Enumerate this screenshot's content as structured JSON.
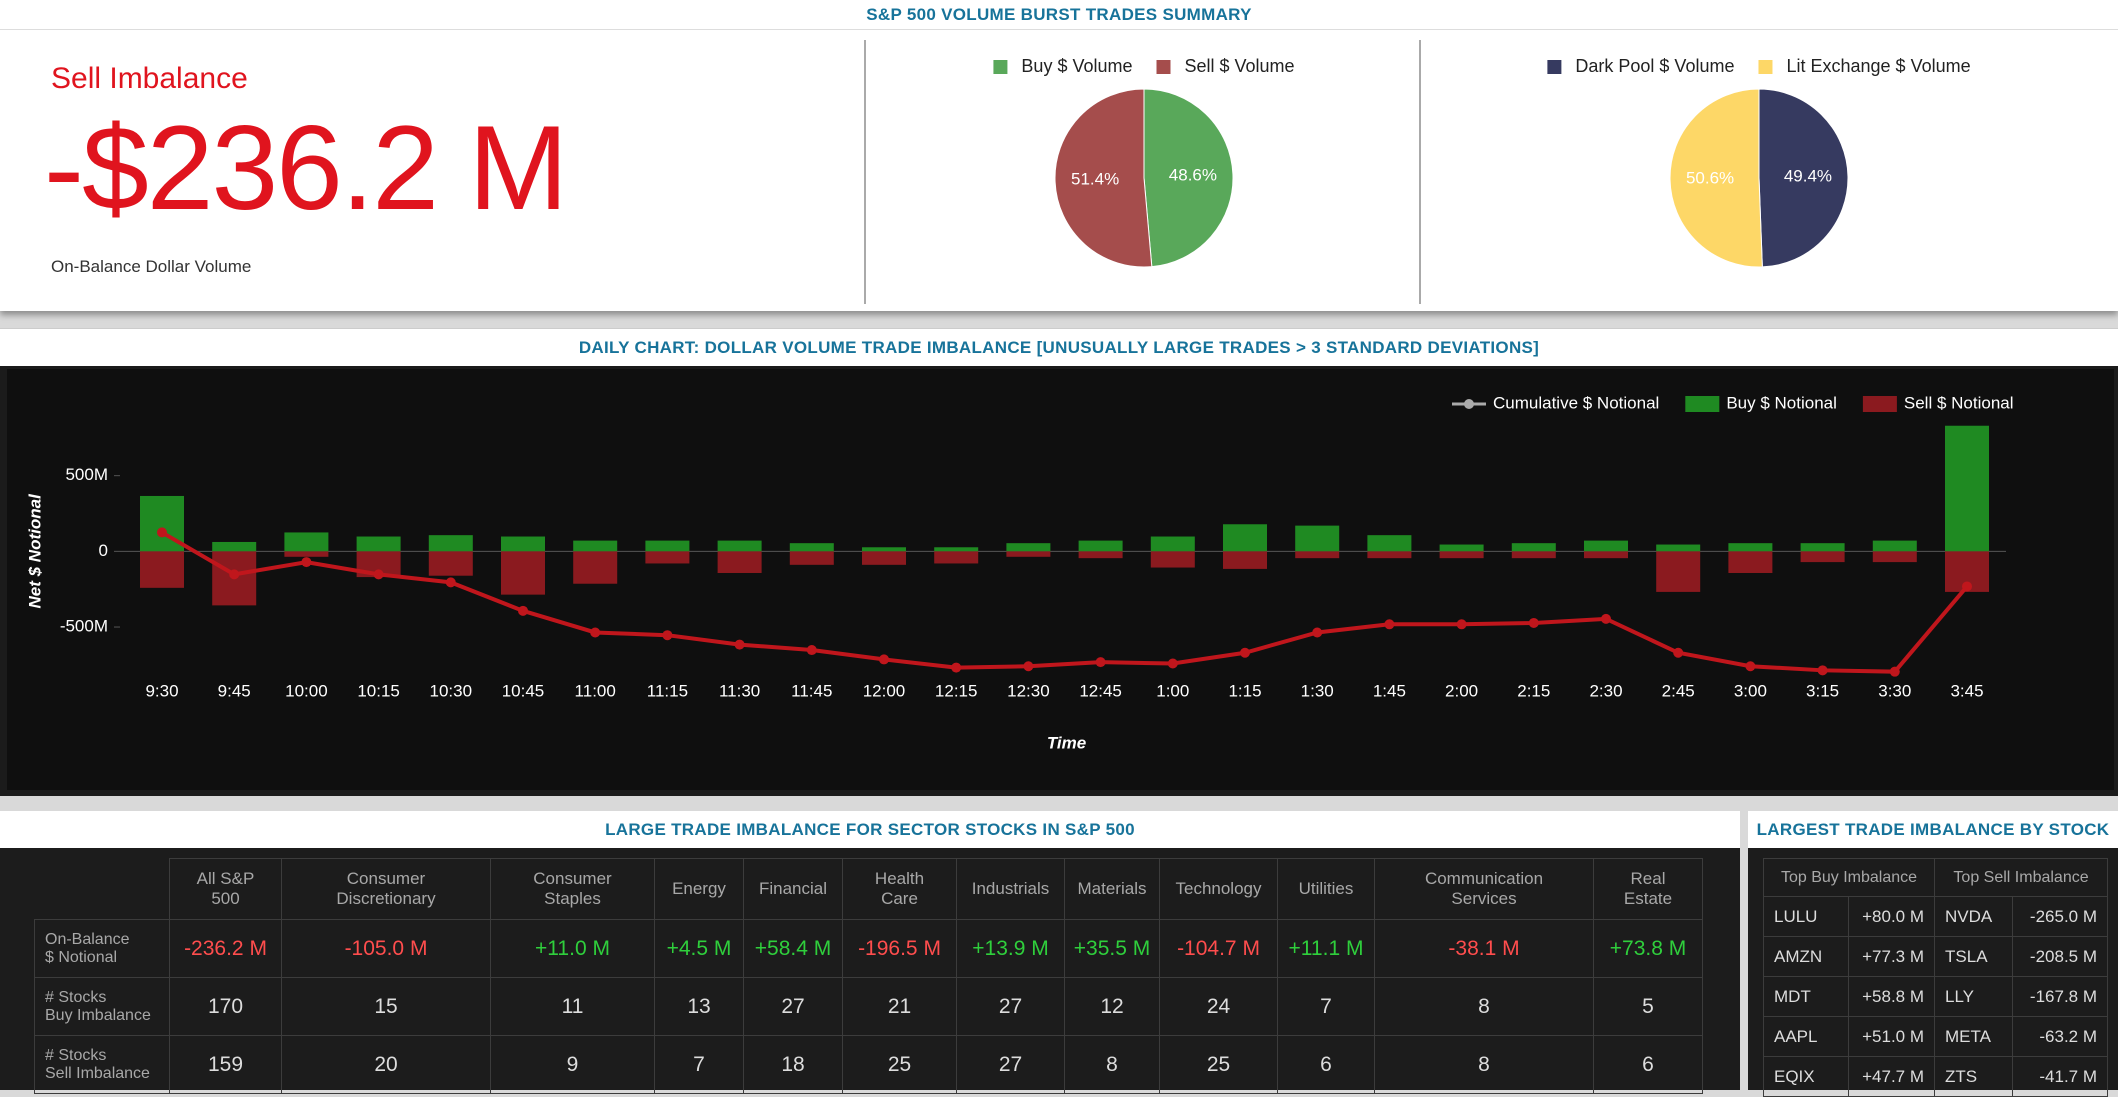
{
  "header": {
    "title": "S&P 500 VOLUME BURST TRADES SUMMARY"
  },
  "summary": {
    "label": "Sell Imbalance",
    "value": "-$236.2 M",
    "caption": "On-Balance Dollar Volume"
  },
  "chart_data": [
    {
      "type": "pie",
      "categories": [
        "Buy $ Volume",
        "Sell $ Volume"
      ],
      "values": [
        48.6,
        51.4
      ],
      "value_labels": [
        "48.6%",
        "51.4%"
      ],
      "colors": [
        "#59a85a",
        "#a54d4c"
      ]
    },
    {
      "type": "pie",
      "categories": [
        "Dark Pool $ Volume",
        "Lit Exchange $ Volume"
      ],
      "values": [
        49.4,
        50.6
      ],
      "value_labels": [
        "49.4%",
        "50.6%"
      ],
      "colors": [
        "#363a60",
        "#fdd767"
      ]
    },
    {
      "type": "bar",
      "title": "DAILY CHART: DOLLAR VOLUME TRADE IMBALANCE [UNUSUALLY LARGE TRADES > 3 STANDARD DEVIATIONS]",
      "x_label": "Time",
      "y_label": "Net $ Notional",
      "categories": [
        "9:30",
        "9:45",
        "10:00",
        "10:15",
        "10:30",
        "10:45",
        "11:00",
        "11:15",
        "11:30",
        "11:45",
        "12:00",
        "12:15",
        "12:30",
        "12:45",
        "1:00",
        "1:15",
        "1:30",
        "1:45",
        "2:00",
        "2:15",
        "2:30",
        "2:45",
        "3:00",
        "3:15",
        "3:30",
        "3:45"
      ],
      "series": [
        {
          "name": "Cumulative $ Notional",
          "type": "line",
          "color": "#c0161c",
          "values": [
            125,
            -152,
            -71,
            -152,
            -205,
            -393,
            -536,
            -554,
            -616,
            -652,
            -714,
            -768,
            -759,
            -732,
            -741,
            -670,
            -536,
            -482,
            -482,
            -473,
            -446,
            -670,
            -759,
            -786,
            -795,
            -232
          ]
        },
        {
          "name": "Buy $ Notional",
          "type": "bar",
          "color": "#1f8a22",
          "values": [
            366,
            62,
            125,
            98,
            107,
            98,
            71,
            71,
            71,
            54,
            27,
            27,
            54,
            71,
            98,
            179,
            170,
            107,
            45,
            54,
            71,
            45,
            54,
            54,
            71,
            830
          ]
        },
        {
          "name": "Sell $ Notional",
          "type": "bar",
          "color": "#8b1a1f",
          "values": [
            -241,
            -357,
            -36,
            -170,
            -161,
            -286,
            -214,
            -80,
            -143,
            -89,
            -89,
            -80,
            -36,
            -45,
            -107,
            -116,
            -45,
            -45,
            -45,
            -45,
            -45,
            -268,
            -143,
            -71,
            -71,
            -268
          ]
        }
      ],
      "ylim": [
        -850,
        1000
      ],
      "yticks": [
        {
          "value": -500,
          "label": "-500M"
        },
        0,
        {
          "value": 500,
          "label": "500M"
        }
      ],
      "grid": false,
      "legend": "top-right"
    }
  ],
  "sector_table": {
    "title": "LARGE TRADE IMBALANCE FOR SECTOR STOCKS IN S&P 500",
    "columns": [
      "All S&P\n500",
      "Consumer\nDiscretionary",
      "Consumer\nStaples",
      "Energy",
      "Financial",
      "Health\nCare",
      "Industrials",
      "Materials",
      "Technology",
      "Utilities",
      "Communication\nServices",
      "Real\nEstate"
    ],
    "rows": [
      {
        "label": "On-Balance\n$ Notional",
        "cells": [
          "-236.2 M",
          "-105.0 M",
          "+11.0 M",
          "+4.5 M",
          "+58.4 M",
          "-196.5 M",
          "+13.9 M",
          "+35.5 M",
          "-104.7 M",
          "+11.1 M",
          "-38.1 M",
          "+73.8 M"
        ]
      },
      {
        "label": "# Stocks\nBuy Imbalance",
        "cells": [
          170,
          15,
          11,
          13,
          27,
          21,
          27,
          12,
          24,
          7,
          8,
          5
        ]
      },
      {
        "label": "# Stocks\nSell Imbalance",
        "cells": [
          159,
          20,
          9,
          7,
          18,
          25,
          27,
          8,
          25,
          6,
          8,
          6
        ]
      }
    ]
  },
  "stock_table": {
    "title": "LARGEST TRADE IMBALANCE BY STOCK",
    "columns": [
      "Top Buy Imbalance",
      "Top Sell Imbalance"
    ],
    "rows": [
      [
        "LULU",
        "+80.0 M",
        "NVDA",
        "-265.0 M"
      ],
      [
        "AMZN",
        "+77.3 M",
        "TSLA",
        "-208.5 M"
      ],
      [
        "MDT",
        "+58.8 M",
        "LLY",
        "-167.8 M"
      ],
      [
        "AAPL",
        "+51.0 M",
        "META",
        "-63.2 M"
      ],
      [
        "EQIX",
        "+47.7 M",
        "ZTS",
        "-41.7 M"
      ]
    ]
  }
}
